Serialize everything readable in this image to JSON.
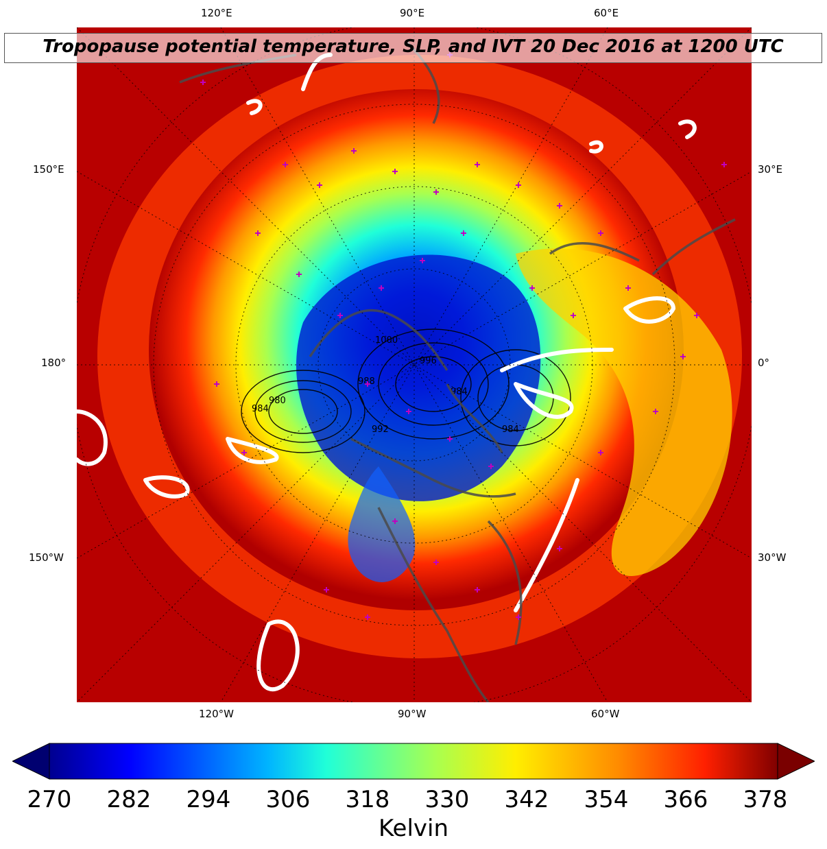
{
  "title": "Tropopause potential temperature, SLP, and IVT 20 Dec 2016 at 1200 UTC",
  "chart_data": {
    "type": "heatmap",
    "title": "Tropopause potential temperature, SLP, and IVT 20 Dec 2016 at 1200 UTC",
    "projection": "north polar stereographic",
    "variable": "Tropopause potential temperature",
    "units": "Kelvin",
    "colormap": "jet",
    "color_range": [
      270,
      378
    ],
    "colorbar_ticks": [
      270,
      282,
      294,
      306,
      318,
      330,
      342,
      354,
      366,
      378
    ],
    "colorbar_label": "Kelvin",
    "colorbar_extend": "both",
    "lon_labels_top": [
      "120°E",
      "90°E",
      "60°E"
    ],
    "lon_labels_bottom": [
      "120°W",
      "90°W",
      "60°W"
    ],
    "lon_labels_left": [
      "150°E",
      "180°",
      "150°W"
    ],
    "lon_labels_right": [
      "30°E",
      "0°",
      "30°W"
    ],
    "slp_contour_labels": [
      "1000",
      "984",
      "980",
      "988",
      "992",
      "996",
      "984",
      "984"
    ],
    "overlays": [
      "SLP contours (black)",
      "IVT contours (white)",
      "coastlines (gray)",
      "station markers (magenta +)"
    ]
  }
}
